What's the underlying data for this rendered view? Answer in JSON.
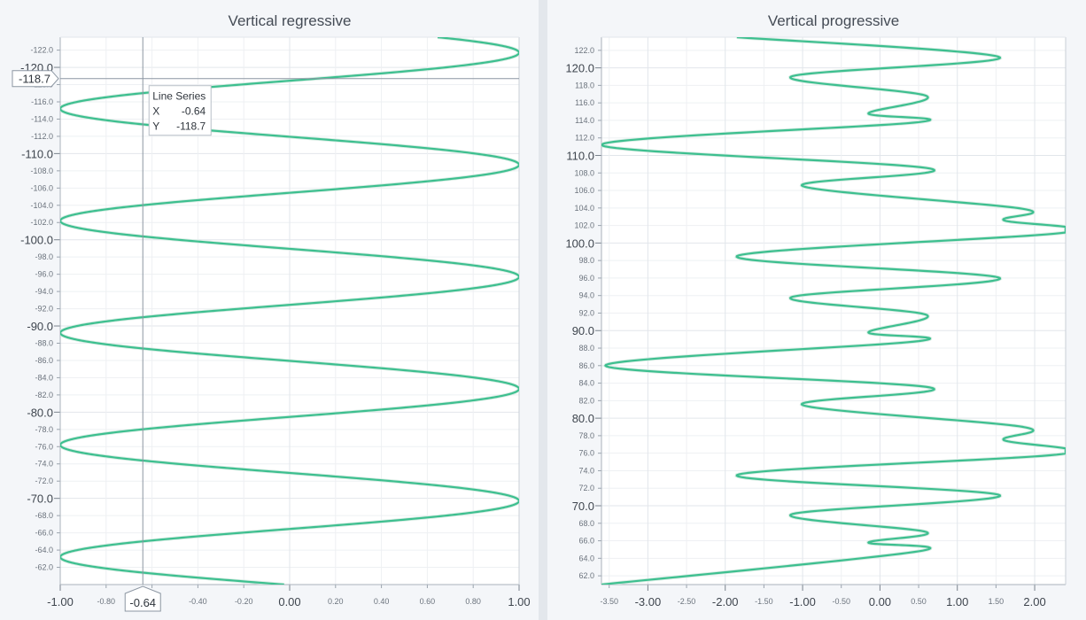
{
  "chart_data": [
    {
      "type": "line",
      "title": "Vertical regressive",
      "orientation": "vertical",
      "y_axis_inverted": true,
      "xlim": [
        -1.0,
        1.0
      ],
      "ylim": [
        -60.0,
        -123.5
      ],
      "x_major_ticks": [
        "-1.00",
        "0.00",
        "1.00"
      ],
      "x_minor_ticks": [
        "-0.80",
        "-0.60",
        "-0.40",
        "-0.20",
        "0.20",
        "0.40",
        "0.60",
        "0.80"
      ],
      "y_major_ticks": [
        "-120.0",
        "-110.0",
        "-100.0",
        "-90.0",
        "-80.0",
        "-70.0"
      ],
      "y_minor_ticks": [
        "-122.0",
        "-118.0",
        "-116.0",
        "-114.0",
        "-112.0",
        "-108.0",
        "-106.0",
        "-104.0",
        "-102.0",
        "-98.0",
        "-96.0",
        "-94.0",
        "-92.0",
        "-88.0",
        "-86.0",
        "-84.0",
        "-82.0",
        "-78.0",
        "-76.0",
        "-74.0",
        "-72.0",
        "-68.0",
        "-66.0",
        "-64.0",
        "-62.0"
      ],
      "grid": true,
      "series": [
        {
          "function": "sine",
          "amplitude": 1.0,
          "period": 13.0,
          "y_start": -60.0,
          "y_end": -123.5,
          "points": [
            [
              -0.4,
              -60.0
            ],
            [
              -1.0,
              -63.2
            ],
            [
              1.0,
              -69.7
            ],
            [
              -1.0,
              -76.2
            ],
            [
              1.0,
              -82.7
            ],
            [
              -1.0,
              -89.2
            ],
            [
              1.0,
              -95.7
            ],
            [
              -1.0,
              -102.2
            ],
            [
              1.0,
              -108.7
            ],
            [
              -1.0,
              -115.2
            ],
            [
              1.0,
              -121.7
            ],
            [
              0.0,
              -123.5
            ]
          ],
          "color": "#3dbf8f"
        }
      ],
      "crosshair": {
        "x": -0.64,
        "y": -118.7,
        "x_label": "-0.64",
        "y_label": "-118.7"
      },
      "tooltip": {
        "title": "Line Series",
        "x_key": "X",
        "x_value": "-0.64",
        "y_key": "Y",
        "y_value": "-118.7"
      }
    },
    {
      "type": "line",
      "title": "Vertical progressive",
      "orientation": "vertical",
      "xlim": [
        -3.6,
        2.4
      ],
      "ylim": [
        61.0,
        123.5
      ],
      "x_major_ticks": [
        "-3.00",
        "-2.00",
        "-1.00",
        "0.00",
        "1.00",
        "2.00"
      ],
      "x_minor_ticks": [
        "-3.50",
        "-2.50",
        "-1.50",
        "-0.50",
        "0.50",
        "1.50"
      ],
      "y_major_ticks": [
        "70.0",
        "80.0",
        "90.0",
        "100.0",
        "110.0",
        "120.0"
      ],
      "y_minor_ticks": [
        "62.0",
        "64.0",
        "66.0",
        "68.0",
        "72.0",
        "74.0",
        "76.0",
        "78.0",
        "82.0",
        "84.0",
        "86.0",
        "88.0",
        "92.0",
        "94.0",
        "96.0",
        "98.0",
        "102.0",
        "104.0",
        "106.0",
        "108.0",
        "112.0",
        "114.0",
        "116.0",
        "118.0",
        "122.0"
      ],
      "grid": true,
      "series": [
        {
          "points": [
            [
              -3.6,
              61.0
            ],
            [
              0.5,
              64.8
            ],
            [
              -0.15,
              65.8
            ],
            [
              0.6,
              67.0
            ],
            [
              -1.15,
              69.0
            ],
            [
              1.55,
              71.2
            ],
            [
              -1.85,
              73.5
            ],
            [
              2.35,
              75.9
            ],
            [
              1.6,
              77.5
            ],
            [
              1.85,
              79.0
            ],
            [
              -1.0,
              81.5
            ],
            [
              0.65,
              83.5
            ],
            [
              -3.55,
              86.0
            ],
            [
              0.5,
              88.8
            ],
            [
              -0.15,
              89.8
            ],
            [
              0.6,
              91.8
            ],
            [
              -1.15,
              93.8
            ],
            [
              1.55,
              96.0
            ],
            [
              -1.85,
              98.5
            ],
            [
              2.4,
              101.2
            ],
            [
              1.6,
              102.6
            ],
            [
              1.85,
              103.9
            ],
            [
              -1.0,
              106.5
            ],
            [
              0.65,
              108.5
            ],
            [
              -3.6,
              111.2
            ],
            [
              0.5,
              113.8
            ],
            [
              -0.15,
              114.8
            ],
            [
              0.6,
              116.8
            ],
            [
              -1.15,
              119.0
            ],
            [
              1.55,
              121.2
            ],
            [
              -1.85,
              123.5
            ]
          ],
          "color": "#3dbf8f"
        }
      ]
    }
  ]
}
